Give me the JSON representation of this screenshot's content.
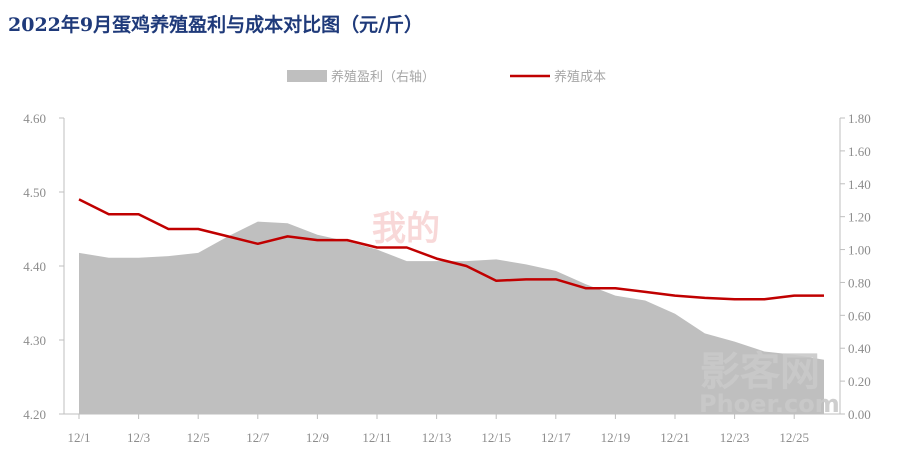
{
  "title": "2022年9月蛋鸡养殖盈利与成本对比图（元/斤）",
  "colors": {
    "area": "#bfbfbf",
    "line": "#c00000",
    "title": "#1f3a7a",
    "axis": "#8c8c8c"
  },
  "watermarks": {
    "center": "我的",
    "brand_cn": "影客网",
    "brand_en": "Phoer.com"
  },
  "chart_data": {
    "type": "area+line",
    "title": "2022年9月蛋鸡养殖盈利与成本对比图（元/斤）",
    "legend": [
      {
        "name": "养殖盈利（右轴）",
        "style": "area",
        "color": "#bfbfbf"
      },
      {
        "name": "养殖成本",
        "style": "line",
        "color": "#c00000"
      }
    ],
    "legend_position": "top-center",
    "x_ticks": [
      "12/1",
      "12/3",
      "12/5",
      "12/7",
      "12/9",
      "12/11",
      "12/13",
      "12/15",
      "12/17",
      "12/19",
      "12/21",
      "12/23",
      "12/25"
    ],
    "x": [
      1,
      2,
      3,
      4,
      5,
      6,
      7,
      8,
      9,
      10,
      11,
      12,
      13,
      14,
      15,
      16,
      17,
      18,
      19,
      20,
      21,
      22,
      23,
      24,
      25,
      26
    ],
    "left_axis": {
      "ylim": [
        4.2,
        4.6
      ],
      "ticks": [
        "4.20",
        "4.30",
        "4.40",
        "4.50",
        "4.60"
      ]
    },
    "right_axis": {
      "ylim": [
        0.0,
        1.8
      ],
      "ticks": [
        "0.00",
        "0.20",
        "0.40",
        "0.60",
        "0.80",
        "1.00",
        "1.20",
        "1.40",
        "1.60",
        "1.80"
      ]
    },
    "series": [
      {
        "name": "养殖盈利（右轴）",
        "axis": "right",
        "type": "area",
        "values": [
          0.98,
          0.95,
          0.95,
          0.96,
          0.98,
          1.08,
          1.17,
          1.16,
          1.09,
          1.05,
          1.0,
          0.93,
          0.93,
          0.93,
          0.94,
          0.91,
          0.87,
          0.79,
          0.72,
          0.69,
          0.61,
          0.49,
          0.44,
          0.38,
          0.36,
          0.33
        ]
      },
      {
        "name": "养殖成本",
        "axis": "left",
        "type": "line",
        "values": [
          4.49,
          4.47,
          4.47,
          4.45,
          4.45,
          4.44,
          4.43,
          4.44,
          4.435,
          4.435,
          4.425,
          4.425,
          4.41,
          4.4,
          4.38,
          4.382,
          4.382,
          4.37,
          4.37,
          4.365,
          4.36,
          4.357,
          4.355,
          4.355,
          4.36,
          4.36
        ]
      }
    ]
  }
}
